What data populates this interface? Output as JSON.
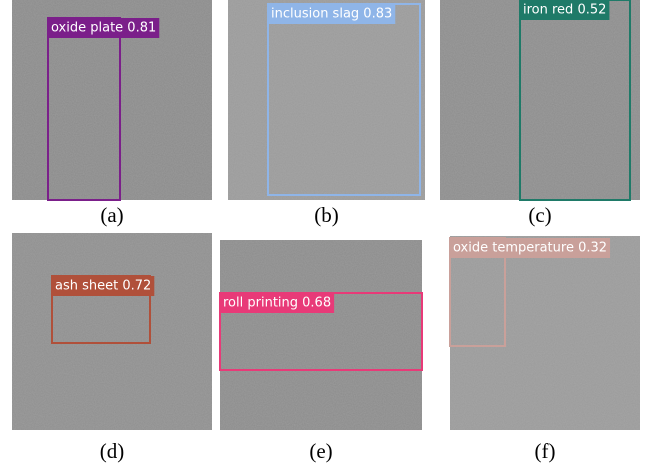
{
  "panels": [
    {
      "caption": "(a)",
      "detection": "oxide plate 0.81"
    },
    {
      "caption": "(b)",
      "detection": "inclusion slag 0.83"
    },
    {
      "caption": "(c)",
      "detection": "iron red 0.52"
    },
    {
      "caption": "(d)",
      "detection": "ash sheet 0.72"
    },
    {
      "caption": "(e)",
      "detection": "roll printing 0.68"
    },
    {
      "caption": "(f)",
      "detection": "oxide temperature 0.32"
    }
  ]
}
